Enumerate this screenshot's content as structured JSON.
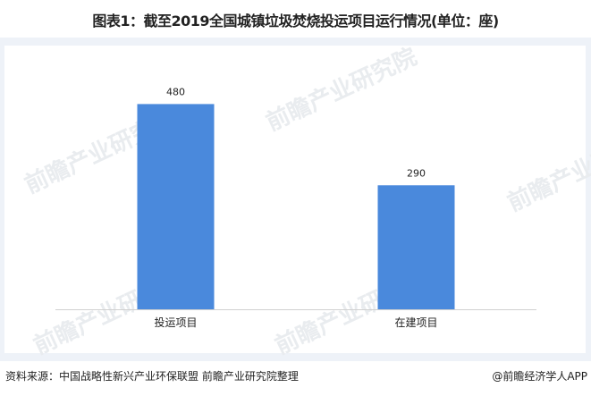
{
  "title": "图表1：截至2019全国城镇垃圾焚烧投运项目运行情况(单位：座)",
  "source": "资料来源：中国战略性新兴产业环保联盟 前瞻产业研究院整理",
  "credit": "@前瞻经济学人APP",
  "watermark": "前瞻产业研究院",
  "colors": {
    "bar": "#4a89dc",
    "axis": "#d0d0d0",
    "panel": "#eef2f8"
  },
  "chart_data": {
    "type": "bar",
    "categories": [
      "投运项目",
      "在建项目"
    ],
    "values": [
      480,
      290
    ],
    "title": "图表1：截至2019全国城镇垃圾焚烧投运项目运行情况(单位：座)",
    "xlabel": "",
    "ylabel": "",
    "ylim": [
      0,
      600
    ],
    "grid": false,
    "data_labels": true
  }
}
